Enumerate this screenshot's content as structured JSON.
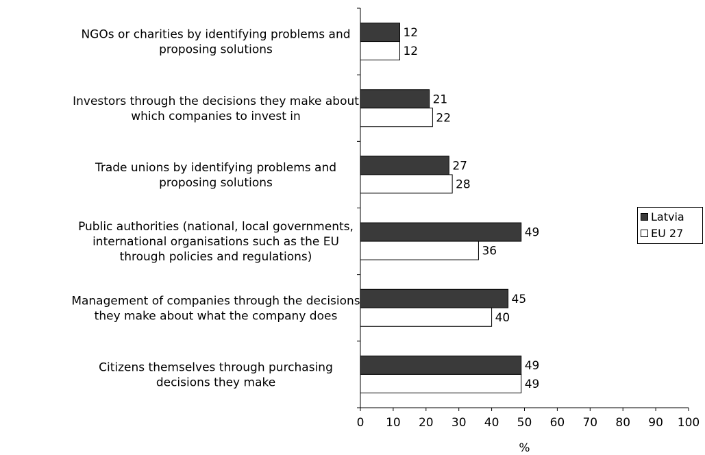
{
  "chart_data": {
    "type": "bar",
    "orientation": "horizontal",
    "categories": [
      [
        "NGOs or charities by identifying problems and",
        "proposing solutions"
      ],
      [
        "Investors through the decisions they make about",
        "which companies to invest in"
      ],
      [
        "Trade unions by identifying problems and",
        "proposing solutions"
      ],
      [
        "Public authorities (national, local governments,",
        "international organisations such as the EU",
        "through policies and regulations)"
      ],
      [
        "Management of companies through the decisions",
        "they make about what the company does"
      ],
      [
        "Citizens themselves through purchasing",
        "decisions they make"
      ]
    ],
    "series": [
      {
        "name": "Latvia",
        "color": "#3a3a3a",
        "values": [
          12,
          21,
          27,
          49,
          45,
          49
        ]
      },
      {
        "name": "EU 27",
        "color": "#ffffff",
        "values": [
          12,
          22,
          28,
          36,
          40,
          49
        ]
      }
    ],
    "xlabel": "%",
    "xlim": [
      0,
      100
    ],
    "xticks": [
      0,
      10,
      20,
      30,
      40,
      50,
      60,
      70,
      80,
      90,
      100
    ],
    "legend_position": "right",
    "grid": false
  },
  "legend": {
    "latvia_label": "Latvia",
    "eu_label": "EU 27"
  }
}
